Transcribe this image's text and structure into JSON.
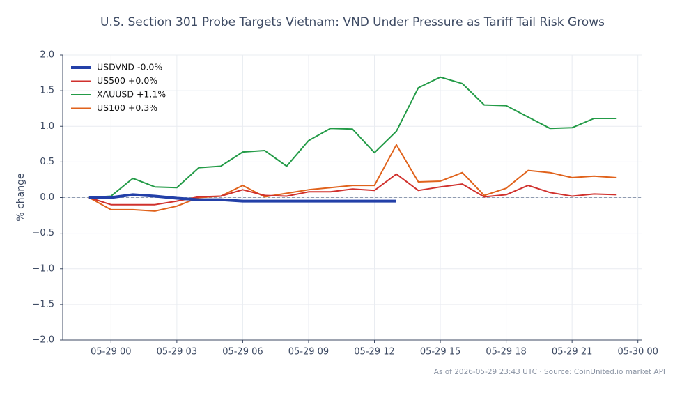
{
  "chart_data": {
    "type": "line",
    "title": "U.S. Section 301 Probe Targets Vietnam: VND Under Pressure as Tariff Tail Risk Grows",
    "y_label": "% change",
    "footnote": "As of 2026-05-29 23:43 UTC · Source: CoinUnited.io market API",
    "x": [
      "05-28 23",
      "05-29 00",
      "05-29 01",
      "05-29 02",
      "05-29 03",
      "05-29 04",
      "05-29 05",
      "05-29 06",
      "05-29 07",
      "05-29 08",
      "05-29 09",
      "05-29 10",
      "05-29 11",
      "05-29 12",
      "05-29 13",
      "05-29 14",
      "05-29 15",
      "05-29 16",
      "05-29 17",
      "05-29 18",
      "05-29 19",
      "05-29 20",
      "05-29 21",
      "05-29 22",
      "05-29 23"
    ],
    "series": [
      {
        "name": "USDVND -0.0%",
        "color": "#2340a8",
        "width": 4,
        "values": [
          0.0,
          0.0,
          0.04,
          0.02,
          -0.01,
          -0.03,
          -0.03,
          -0.05,
          -0.05,
          -0.05,
          -0.05,
          -0.05,
          -0.05,
          -0.05,
          -0.05,
          null,
          null,
          null,
          null,
          null,
          null,
          null,
          null,
          null,
          null
        ]
      },
      {
        "name": "US500 +0.0%",
        "color": "#d0312d",
        "width": 2,
        "values": [
          0.0,
          -0.1,
          -0.1,
          -0.1,
          -0.05,
          0.01,
          0.02,
          0.11,
          0.03,
          0.02,
          0.08,
          0.08,
          0.12,
          0.1,
          0.33,
          0.1,
          0.15,
          0.19,
          0.01,
          0.04,
          0.17,
          0.07,
          0.02,
          0.05,
          0.04
        ]
      },
      {
        "name": "XAUUSD +1.1%",
        "color": "#239b47",
        "width": 2,
        "values": [
          0.0,
          0.02,
          0.27,
          0.15,
          0.14,
          0.42,
          0.44,
          0.64,
          0.66,
          0.44,
          0.8,
          0.97,
          0.96,
          0.63,
          0.93,
          1.54,
          1.69,
          1.6,
          1.3,
          1.29,
          1.13,
          0.97,
          0.98,
          1.11,
          1.11
        ]
      },
      {
        "name": "US100 +0.3%",
        "color": "#e0621b",
        "width": 2,
        "values": [
          0.0,
          -0.17,
          -0.17,
          -0.19,
          -0.12,
          0.0,
          0.02,
          0.17,
          0.01,
          0.06,
          0.11,
          0.14,
          0.17,
          0.17,
          0.74,
          0.22,
          0.23,
          0.35,
          0.03,
          0.13,
          0.38,
          0.35,
          0.28,
          0.3,
          0.28
        ]
      }
    ],
    "xlim": [
      "05-28 21:48",
      "05-30 00:12"
    ],
    "xticks": [
      "05-29 00",
      "05-29 03",
      "05-29 06",
      "05-29 09",
      "05-29 12",
      "05-29 15",
      "05-29 18",
      "05-29 21",
      "05-30 00"
    ],
    "ylim": [
      -2,
      2
    ],
    "yticks": [
      {
        "value": -2,
        "label": "−2.0"
      },
      {
        "value": -1.5,
        "label": "−1.5"
      },
      {
        "value": -1,
        "label": "−1.0"
      },
      {
        "value": -0.5,
        "label": "−0.5"
      },
      {
        "value": 0,
        "label": "0.0"
      },
      {
        "value": 0.5,
        "label": "0.5"
      },
      {
        "value": 1,
        "label": "1.0"
      },
      {
        "value": 1.5,
        "label": "1.5"
      },
      {
        "value": 2,
        "label": "2.0"
      }
    ],
    "hline": 0,
    "grid": true,
    "legend": "upper left"
  }
}
